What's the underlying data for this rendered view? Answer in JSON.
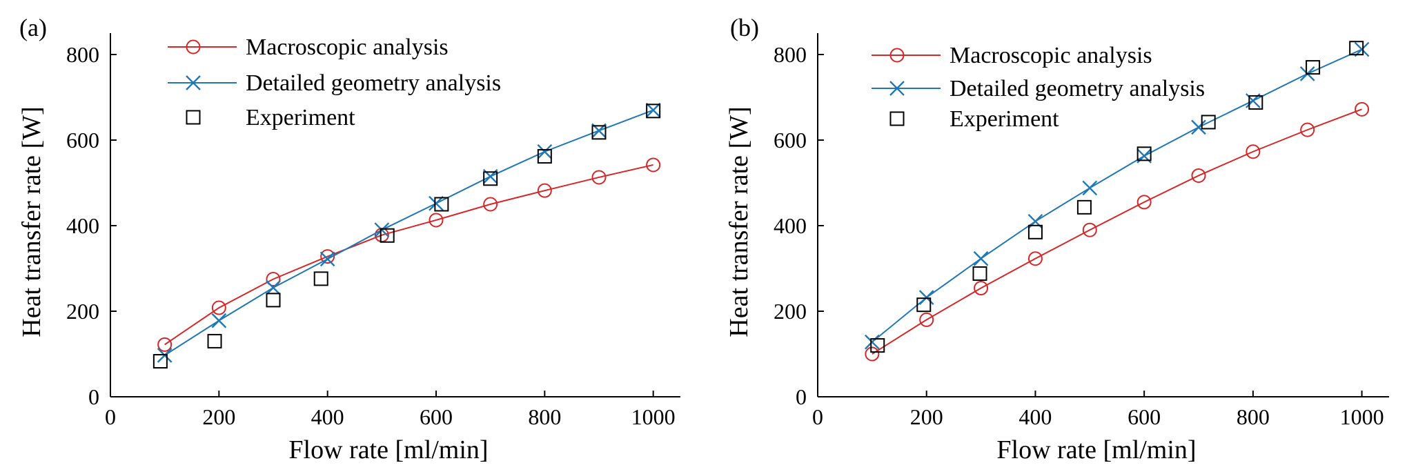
{
  "chart_data": [
    {
      "type": "line",
      "panel_label": "(a)",
      "xlabel": "Flow rate [ml/min]",
      "ylabel": "Heat transfer rate [W]",
      "xlim": [
        0,
        1050
      ],
      "ylim": [
        0,
        850
      ],
      "xticks": [
        0,
        200,
        400,
        600,
        800,
        1000
      ],
      "yticks": [
        0,
        200,
        400,
        600,
        800
      ],
      "legend_position": "top-left",
      "series": [
        {
          "name": "Macroscopic analysis",
          "marker": "circle",
          "color": "#d62728",
          "x": [
            100,
            200,
            300,
            400,
            500,
            600,
            700,
            800,
            900,
            1000
          ],
          "y": [
            122,
            208,
            275,
            328,
            378,
            413,
            450,
            482,
            513,
            542
          ]
        },
        {
          "name": "Detailed geometry analysis",
          "marker": "x",
          "color": "#1f77b4",
          "x": [
            100,
            200,
            300,
            400,
            500,
            600,
            700,
            800,
            900,
            1000
          ],
          "y": [
            97,
            178,
            255,
            322,
            390,
            452,
            515,
            573,
            622,
            670
          ]
        },
        {
          "name": "Experiment",
          "marker": "square",
          "color": "#000000",
          "x": [
            92,
            192,
            300,
            388,
            510,
            610,
            700,
            800,
            900,
            1000
          ],
          "y": [
            83,
            130,
            226,
            276,
            377,
            450,
            510,
            562,
            618,
            668
          ]
        }
      ]
    },
    {
      "type": "line",
      "panel_label": "(b)",
      "xlabel": "Flow rate [ml/min]",
      "ylabel": "Heat transfer rate [W]",
      "xlim": [
        0,
        1050
      ],
      "ylim": [
        0,
        850
      ],
      "xticks": [
        0,
        200,
        400,
        600,
        800,
        1000
      ],
      "yticks": [
        0,
        200,
        400,
        600,
        800
      ],
      "legend_position": "top-left",
      "series": [
        {
          "name": "Macroscopic analysis",
          "marker": "circle",
          "color": "#d62728",
          "x": [
            100,
            200,
            300,
            400,
            500,
            600,
            700,
            800,
            900,
            1000
          ],
          "y": [
            100,
            180,
            254,
            323,
            390,
            455,
            517,
            573,
            624,
            672
          ]
        },
        {
          "name": "Detailed geometry analysis",
          "marker": "x",
          "color": "#1f77b4",
          "x": [
            100,
            200,
            300,
            400,
            500,
            600,
            700,
            800,
            900,
            1000
          ],
          "y": [
            128,
            232,
            323,
            410,
            488,
            563,
            630,
            692,
            755,
            812
          ]
        },
        {
          "name": "Experiment",
          "marker": "square",
          "color": "#000000",
          "x": [
            110,
            195,
            298,
            400,
            490,
            600,
            718,
            805,
            910,
            990
          ],
          "y": [
            120,
            215,
            288,
            385,
            443,
            568,
            642,
            688,
            770,
            815
          ]
        }
      ]
    }
  ]
}
